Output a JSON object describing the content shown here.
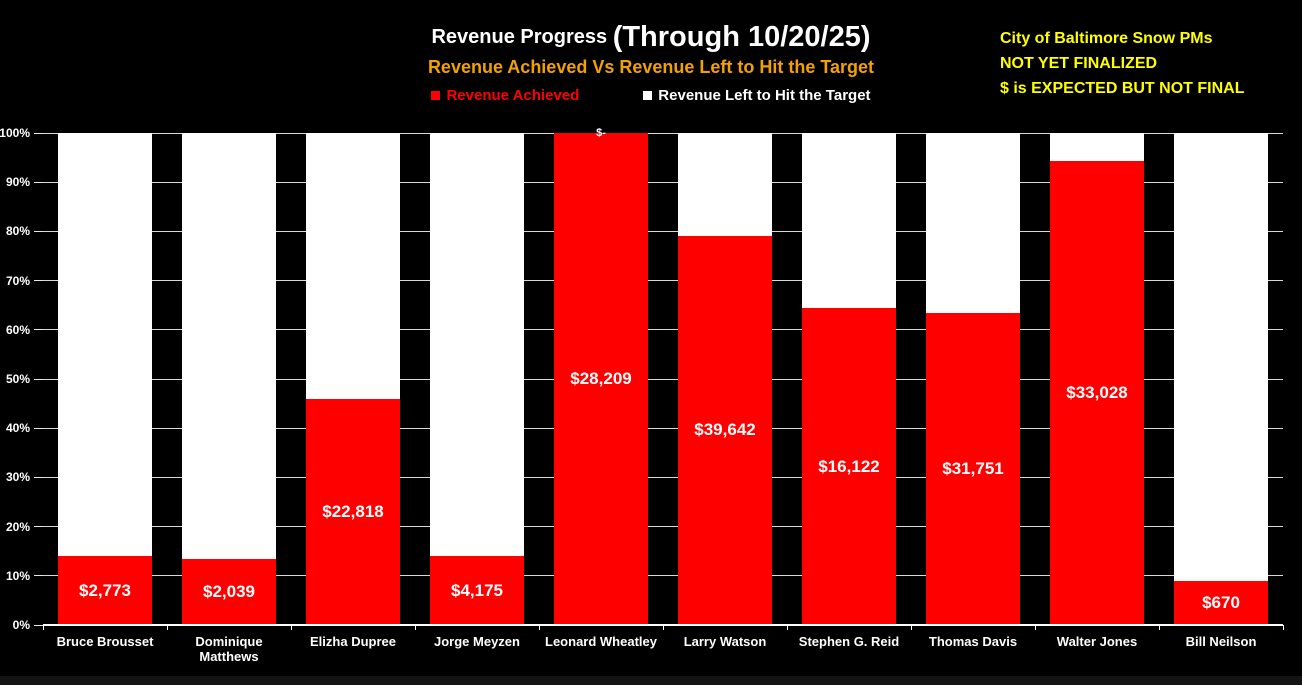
{
  "header": {
    "title_small": "Revenue Progress ",
    "title_large": "(Through 10/20/25)",
    "subtitle": "Revenue Achieved Vs Revenue Left to Hit the Target",
    "legend": [
      {
        "label": "Revenue Achieved",
        "color": "#FF0000",
        "text_color": "#FF0000"
      },
      {
        "label": "Revenue Left to Hit the Target",
        "color": "#FFFFFF",
        "text_color": "#FFFFFF"
      }
    ]
  },
  "annotation": {
    "lines": [
      "City of Baltimore Snow PMs",
      "NOT YET FINALIZED",
      "$ is EXPECTED BUT NOT FINAL"
    ],
    "color": "#FFFF00"
  },
  "colors": {
    "background": "#000000",
    "achieved": "#FF0000",
    "remaining": "#FFFFFF",
    "subtitle": "#F2A100",
    "gridline": "#D9D9D9",
    "axis": "#FFFFFF"
  },
  "chart_data": {
    "type": "bar",
    "stacked": true,
    "title": "Revenue Progress (Through 10/20/25)",
    "subtitle": "Revenue Achieved Vs Revenue Left to Hit the Target",
    "legend_position": "top",
    "grid": true,
    "ylim": [
      0,
      100
    ],
    "y_ticks": [
      "0%",
      "10%",
      "20%",
      "30%",
      "40%",
      "50%",
      "60%",
      "70%",
      "80%",
      "90%",
      "100%"
    ],
    "categories": [
      "Bruce Brousset",
      "Dominique\nMatthews",
      "Elizha Dupree",
      "Jorge Meyzen",
      "Leonard Wheatley",
      "Larry Watson",
      "Stephen G. Reid",
      "Thomas Davis",
      "Walter Jones",
      "Bill Neilson"
    ],
    "series": [
      {
        "name": "Revenue Achieved",
        "color": "#FF0000",
        "pct_of_target": [
          14,
          13.4,
          45.9,
          14,
          100,
          79.1,
          64.4,
          63.4,
          94.3,
          8.9
        ],
        "labels": [
          "$2,773",
          "$2,039",
          "$22,818",
          "$4,175",
          "$28,209",
          "$39,642",
          "$16,122",
          "$31,751",
          "$33,028",
          "$670"
        ]
      },
      {
        "name": "Revenue Left to Hit the Target",
        "color": "#FFFFFF",
        "pct_of_target": [
          86,
          86.6,
          54.1,
          86,
          0,
          20.9,
          35.6,
          36.6,
          5.7,
          91.1
        ],
        "labels": [
          "",
          "",
          "",
          "",
          "$-",
          "",
          "",
          "",
          "",
          ""
        ]
      }
    ]
  }
}
